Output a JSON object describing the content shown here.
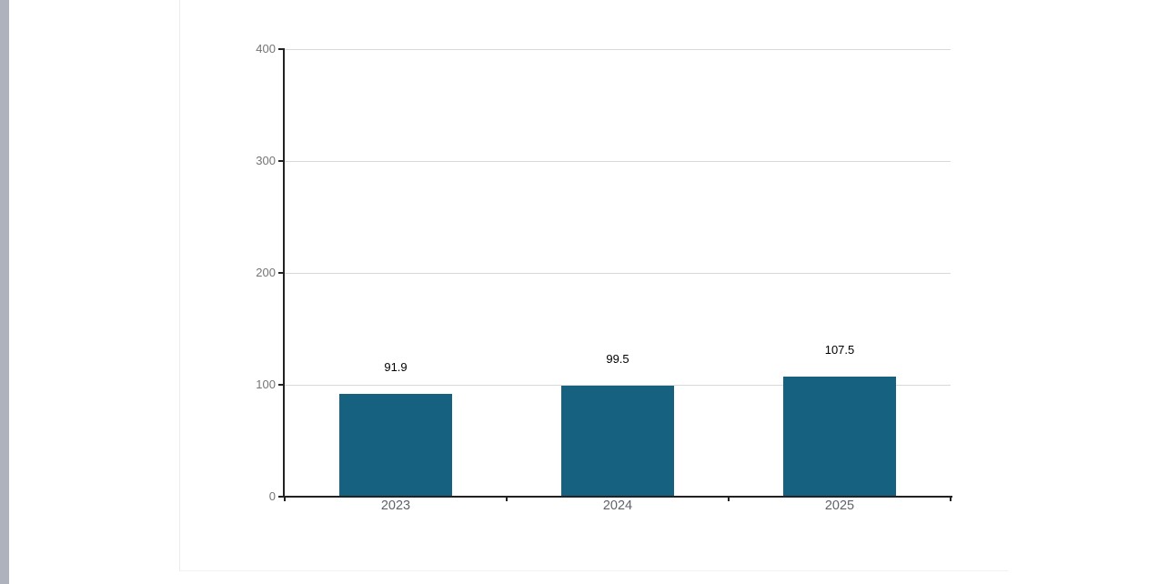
{
  "page": {
    "background_color": "#ffffff",
    "left_strip_color": "#adb2bc",
    "card_border_color": "#ececec"
  },
  "chart_data": {
    "type": "bar",
    "title": "",
    "xlabel": "",
    "ylabel": "",
    "categories": [
      "2023",
      "2024",
      "2025"
    ],
    "values": [
      91.9,
      99.5,
      107.5
    ],
    "data_labels": [
      "91.9",
      "99.5",
      "107.5"
    ],
    "ylim": [
      0,
      400
    ],
    "yticks": [
      0,
      100,
      200,
      300,
      400
    ],
    "ytick_labels": [
      "0",
      "100",
      "200",
      "300",
      "400"
    ],
    "grid": true,
    "legend": false,
    "bar_color": "#166180",
    "value_label_color": "#000000",
    "axis_color": "#222222",
    "gridline_color": "#d9d9d9",
    "ytick_label_color": "#757575",
    "xtick_label_color": "#5f6368"
  }
}
